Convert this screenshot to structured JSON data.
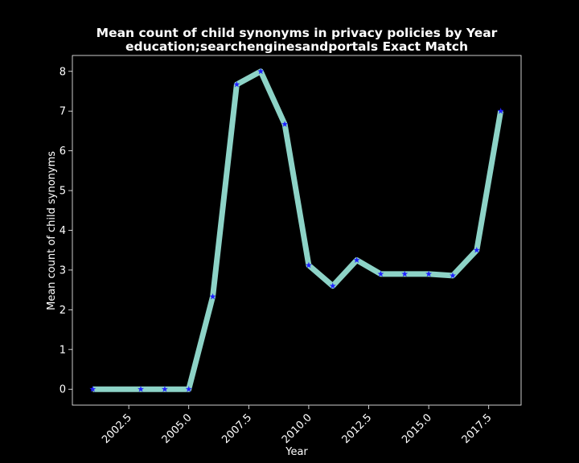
{
  "chart_data": {
    "type": "line",
    "title": "Mean count of child synonyms in privacy policies by Year",
    "subtitle": "education;searchenginesandportals Exact Match",
    "xlabel": "Year",
    "ylabel": "Mean count of child synonyms",
    "xlim": [
      2000.15,
      2018.85
    ],
    "ylim": [
      -0.4,
      8.4
    ],
    "xticks": [
      2002.5,
      2005.0,
      2007.5,
      2010.0,
      2012.5,
      2015.0,
      2017.5
    ],
    "xtick_labels": [
      "2002.5",
      "2005.0",
      "2007.5",
      "2010.0",
      "2012.5",
      "2015.0",
      "2017.5"
    ],
    "yticks": [
      0,
      1,
      2,
      3,
      4,
      5,
      6,
      7,
      8
    ],
    "ytick_labels": [
      "0",
      "1",
      "2",
      "3",
      "4",
      "5",
      "6",
      "7",
      "8"
    ],
    "grid": false,
    "background": "#000000",
    "line_color": "#8dd3c7",
    "marker_color": "#1f1fff",
    "marker": "star",
    "series": [
      {
        "x": [
          2001,
          2003,
          2004,
          2005,
          2006,
          2007,
          2008,
          2009,
          2010,
          2011,
          2012,
          2013,
          2014,
          2015,
          2016,
          2017,
          2018
        ],
        "y": [
          0,
          0,
          0,
          0,
          2.33,
          7.67,
          8.0,
          6.67,
          3.12,
          2.6,
          3.25,
          2.9,
          2.9,
          2.9,
          2.86,
          3.5,
          7.0
        ]
      }
    ]
  }
}
